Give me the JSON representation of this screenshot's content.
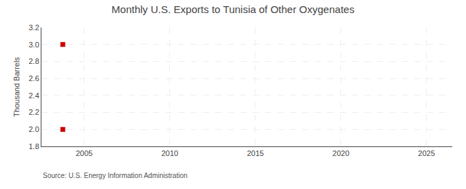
{
  "chart_data": {
    "type": "scatter",
    "title": "Monthly U.S. Exports to Tunisia of Other Oxygenates",
    "ylabel": "Thousand Barrels",
    "annotations": [
      "Source: U.S. Energy Information Administration"
    ],
    "x": [
      2003.75,
      2003.75
    ],
    "values": [
      3.0,
      2.0
    ],
    "color": "#cc0000",
    "marker": "square",
    "xlim": [
      2002.5,
      2026.5
    ],
    "ylim": [
      1.8,
      3.2
    ],
    "xticks": [
      2005,
      2010,
      2015,
      2020,
      2025
    ],
    "yticks": [
      1.8,
      {
        "value": 2.0,
        "label": "2.0"
      },
      2.2,
      2.4,
      2.6,
      2.8,
      {
        "value": 3.0,
        "label": "3.0"
      },
      3.2
    ],
    "grid": true
  }
}
